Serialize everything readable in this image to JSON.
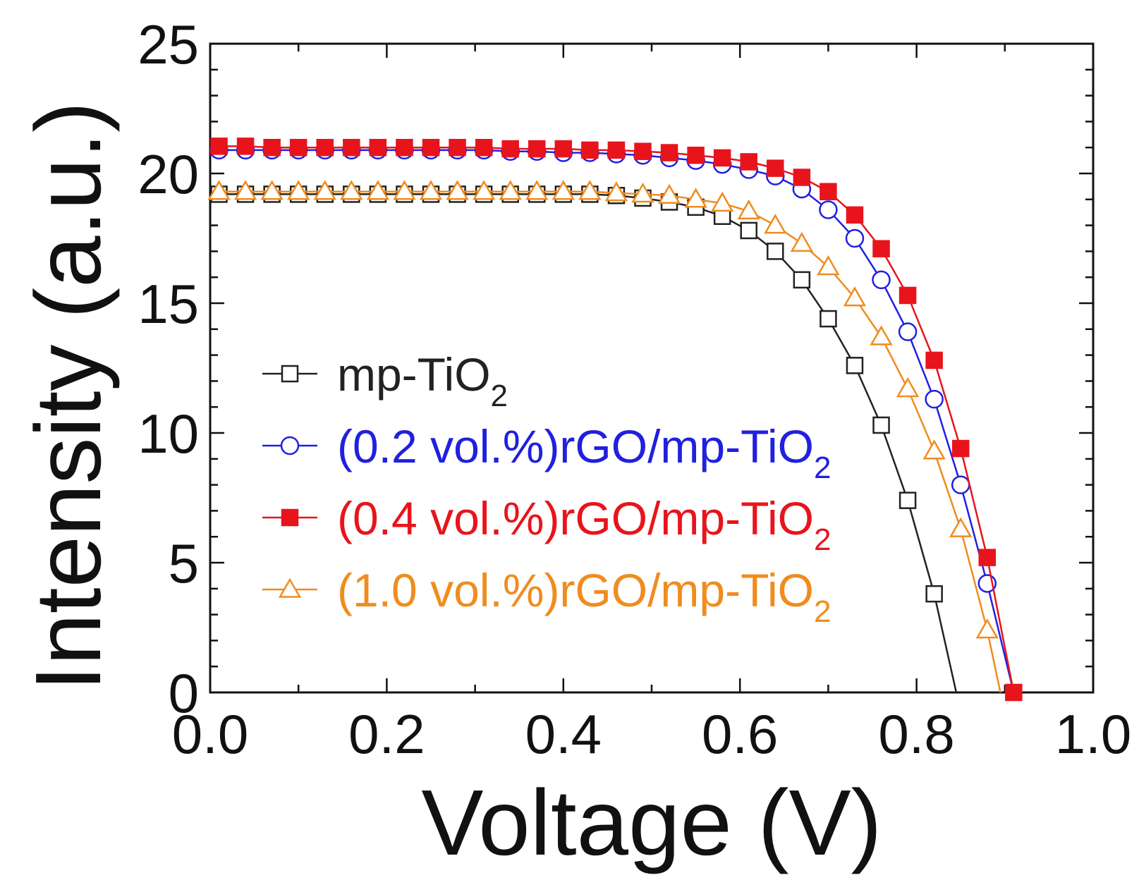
{
  "chart_data": {
    "type": "line",
    "title": "",
    "xlabel": "Voltage (V)",
    "ylabel": "Intensity (a.u.)",
    "xlim": [
      0.0,
      1.0
    ],
    "ylim": [
      0,
      25
    ],
    "grid": false,
    "legend_position": "left-middle",
    "x_ticks": [
      "0.0",
      "0.2",
      "0.4",
      "0.6",
      "0.8",
      "1.0"
    ],
    "y_ticks": [
      "0",
      "5",
      "10",
      "15",
      "20",
      "25"
    ],
    "series": [
      {
        "name": "mp-TiO",
        "name_subscript": "2",
        "color": "#222222",
        "marker": "square-open",
        "x": [
          0.01,
          0.04,
          0.07,
          0.1,
          0.13,
          0.16,
          0.19,
          0.22,
          0.25,
          0.28,
          0.31,
          0.34,
          0.37,
          0.4,
          0.43,
          0.46,
          0.49,
          0.52,
          0.55,
          0.58,
          0.61,
          0.64,
          0.67,
          0.7,
          0.73,
          0.76,
          0.79,
          0.82,
          0.845
        ],
        "y": [
          19.2,
          19.2,
          19.2,
          19.2,
          19.2,
          19.2,
          19.2,
          19.2,
          19.2,
          19.2,
          19.2,
          19.2,
          19.2,
          19.2,
          19.2,
          19.15,
          19.05,
          18.9,
          18.7,
          18.35,
          17.8,
          17.0,
          15.9,
          14.4,
          12.6,
          10.3,
          7.4,
          3.8,
          0.0
        ],
        "marker_indices": [
          0,
          1,
          2,
          3,
          4,
          5,
          6,
          7,
          8,
          9,
          10,
          11,
          12,
          13,
          14,
          15,
          16,
          17,
          18,
          19,
          20,
          21,
          22,
          23,
          24,
          25,
          26,
          27
        ]
      },
      {
        "name": "(0.2 vol.%)rGO/mp-TiO",
        "name_subscript": "2",
        "color": "#2020e0",
        "marker": "circle-open",
        "x": [
          0.01,
          0.04,
          0.07,
          0.1,
          0.13,
          0.16,
          0.19,
          0.22,
          0.25,
          0.28,
          0.31,
          0.34,
          0.37,
          0.4,
          0.43,
          0.46,
          0.49,
          0.52,
          0.55,
          0.58,
          0.61,
          0.64,
          0.67,
          0.7,
          0.73,
          0.76,
          0.79,
          0.82,
          0.85,
          0.88,
          0.91
        ],
        "y": [
          20.9,
          20.9,
          20.9,
          20.9,
          20.9,
          20.9,
          20.9,
          20.9,
          20.9,
          20.9,
          20.9,
          20.85,
          20.85,
          20.8,
          20.8,
          20.75,
          20.7,
          20.6,
          20.5,
          20.35,
          20.15,
          19.9,
          19.4,
          18.6,
          17.5,
          15.9,
          13.9,
          11.3,
          8.0,
          4.2,
          0.0
        ],
        "marker_indices": [
          0,
          1,
          2,
          3,
          4,
          5,
          6,
          7,
          8,
          9,
          10,
          11,
          12,
          13,
          14,
          15,
          16,
          17,
          18,
          19,
          20,
          21,
          22,
          23,
          24,
          25,
          26,
          27,
          28,
          29
        ]
      },
      {
        "name": "(0.4 vol.%)rGO/mp-TiO",
        "name_subscript": "2",
        "color": "#e8141c",
        "marker": "square-filled",
        "x": [
          0.01,
          0.04,
          0.07,
          0.1,
          0.13,
          0.16,
          0.19,
          0.22,
          0.25,
          0.28,
          0.31,
          0.34,
          0.37,
          0.4,
          0.43,
          0.46,
          0.49,
          0.52,
          0.55,
          0.58,
          0.61,
          0.64,
          0.67,
          0.7,
          0.73,
          0.76,
          0.79,
          0.82,
          0.85,
          0.88,
          0.91
        ],
        "y": [
          21.05,
          21.05,
          21.0,
          21.0,
          21.0,
          21.0,
          21.0,
          21.0,
          21.0,
          21.0,
          21.0,
          20.95,
          20.95,
          20.95,
          20.9,
          20.9,
          20.85,
          20.8,
          20.7,
          20.6,
          20.45,
          20.2,
          19.85,
          19.3,
          18.4,
          17.1,
          15.3,
          12.8,
          9.4,
          5.2,
          0.0
        ],
        "marker_indices": [
          0,
          1,
          2,
          3,
          4,
          5,
          6,
          7,
          8,
          9,
          10,
          11,
          12,
          13,
          14,
          15,
          16,
          17,
          18,
          19,
          20,
          21,
          22,
          23,
          24,
          25,
          26,
          27,
          28,
          29,
          30
        ]
      },
      {
        "name": "(1.0 vol.%)rGO/mp-TiO",
        "name_subscript": "2",
        "color": "#f08c1e",
        "marker": "triangle-open",
        "x": [
          0.01,
          0.04,
          0.07,
          0.1,
          0.13,
          0.16,
          0.19,
          0.22,
          0.25,
          0.28,
          0.31,
          0.34,
          0.37,
          0.4,
          0.43,
          0.46,
          0.49,
          0.52,
          0.55,
          0.58,
          0.61,
          0.64,
          0.67,
          0.7,
          0.73,
          0.76,
          0.79,
          0.82,
          0.85,
          0.88,
          0.895
        ],
        "y": [
          19.3,
          19.3,
          19.3,
          19.3,
          19.3,
          19.3,
          19.3,
          19.3,
          19.3,
          19.3,
          19.3,
          19.3,
          19.3,
          19.3,
          19.3,
          19.25,
          19.2,
          19.15,
          19.0,
          18.85,
          18.55,
          18.0,
          17.3,
          16.4,
          15.2,
          13.7,
          11.7,
          9.3,
          6.3,
          2.4,
          0.0
        ],
        "marker_indices": [
          0,
          1,
          2,
          3,
          4,
          5,
          6,
          7,
          8,
          9,
          10,
          11,
          12,
          13,
          14,
          15,
          16,
          17,
          18,
          19,
          20,
          21,
          22,
          23,
          24,
          25,
          26,
          27,
          28,
          29
        ]
      }
    ]
  }
}
